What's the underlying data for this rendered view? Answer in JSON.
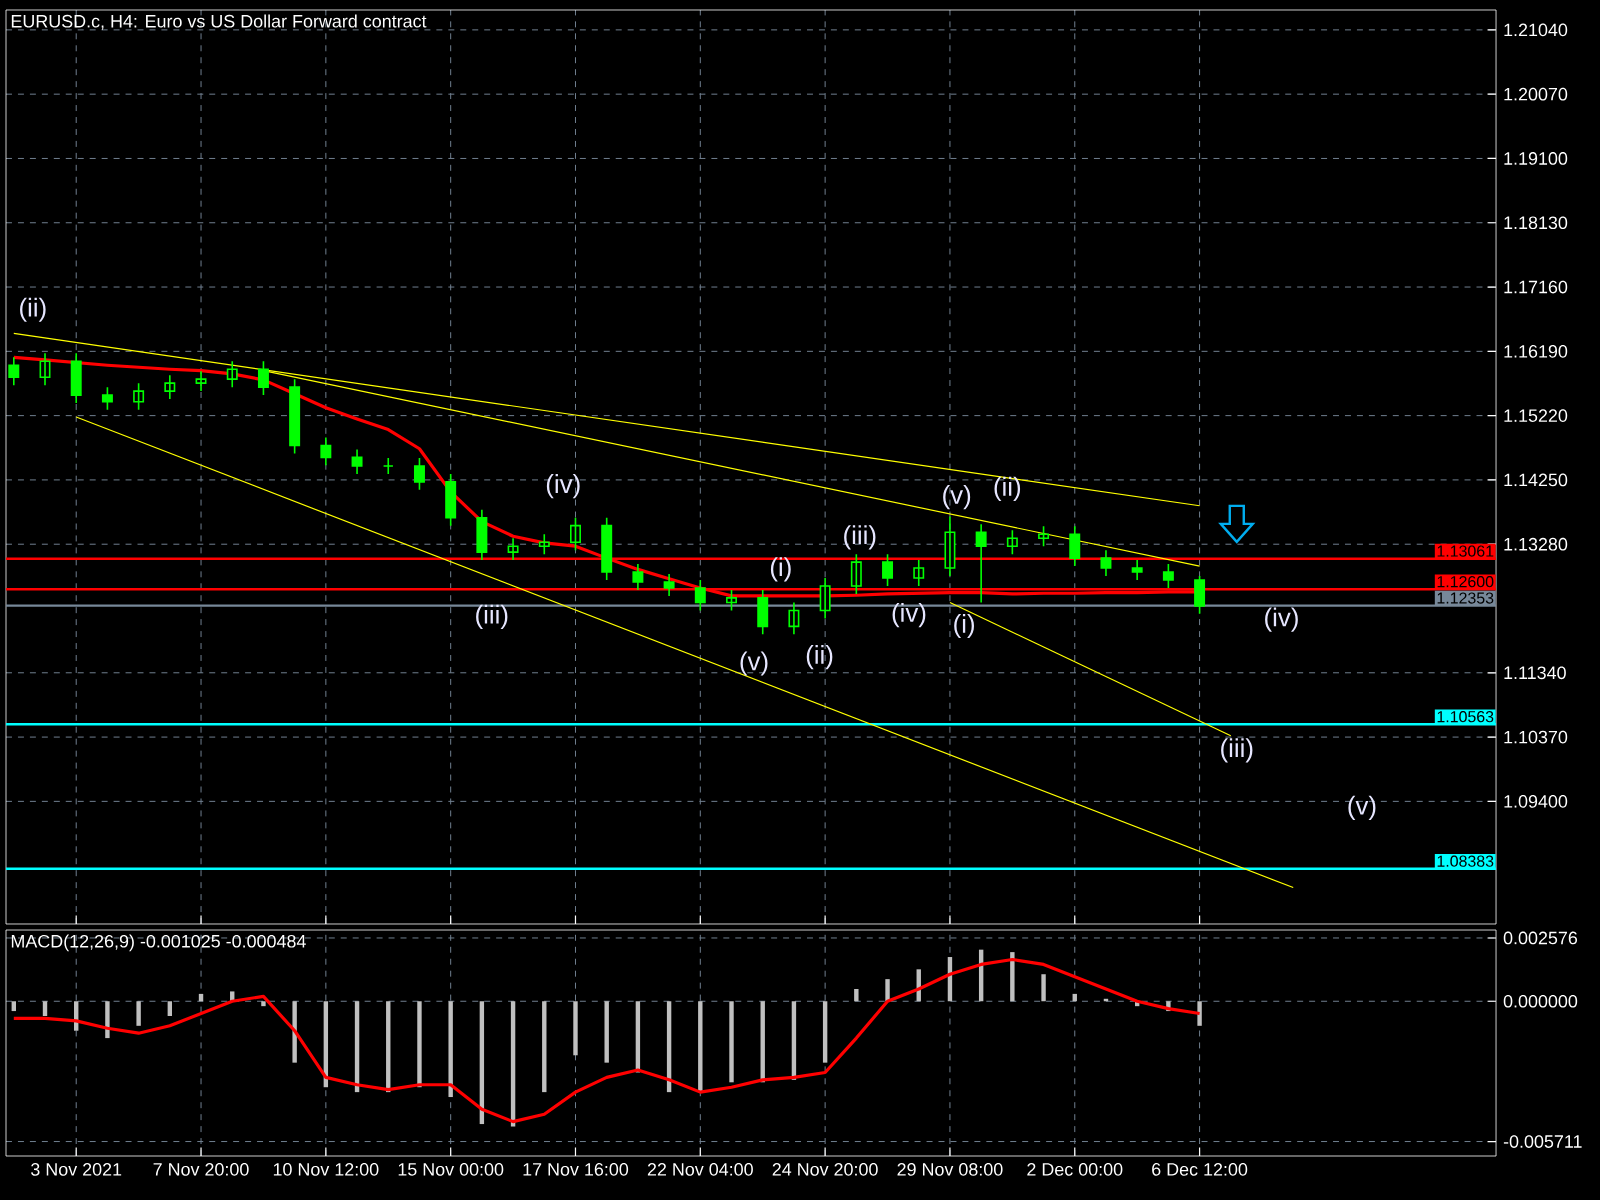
{
  "chart_data": [
    {
      "type": "candlestick",
      "title": "EURUSD.c, H4:  Euro vs US Dollar Forward contract",
      "color": "#00ff00",
      "categories": [
        null,
        null,
        null,
        null,
        null,
        null,
        null,
        null,
        null,
        null,
        null,
        null,
        null,
        null,
        null,
        null,
        null,
        null,
        null,
        null,
        null,
        null,
        null,
        null,
        null,
        null,
        null,
        null,
        null,
        null,
        null,
        null,
        null,
        null,
        null,
        null,
        null,
        null,
        null,
        null,
        null,
        null,
        null,
        null,
        null,
        null,
        null,
        null
      ],
      "ohlc": [
        [
          1.1598,
          1.161,
          1.1568,
          1.158
        ],
        [
          1.158,
          1.1616,
          1.1568,
          1.1604
        ],
        [
          1.1604,
          1.1616,
          1.1541,
          1.1553
        ],
        [
          1.1553,
          1.1565,
          1.1531,
          1.1543
        ],
        [
          1.1543,
          1.1571,
          1.1531,
          1.1559
        ],
        [
          1.1559,
          1.1583,
          1.1547,
          1.1571
        ],
        [
          1.1571,
          1.1589,
          1.1559,
          1.1577
        ],
        [
          1.1577,
          1.1604,
          1.1565,
          1.1592
        ],
        [
          1.1592,
          1.1604,
          1.1553,
          1.1565
        ],
        [
          1.1565,
          1.1577,
          1.1465,
          1.1477
        ],
        [
          1.1477,
          1.1489,
          1.1447,
          1.1459
        ],
        [
          1.1459,
          1.1471,
          1.1434,
          1.1446
        ],
        [
          1.1446,
          1.1458,
          1.1434,
          1.1446
        ],
        [
          1.1446,
          1.1458,
          1.141,
          1.1422
        ],
        [
          1.1422,
          1.1434,
          1.1356,
          1.1368
        ],
        [
          1.1368,
          1.138,
          1.1304,
          1.1316
        ],
        [
          1.1316,
          1.1337,
          1.1304,
          1.1325
        ],
        [
          1.1325,
          1.1343,
          1.1313,
          1.1331
        ],
        [
          1.1331,
          1.1368,
          1.1319,
          1.1356
        ],
        [
          1.1356,
          1.1368,
          1.1274,
          1.1286
        ],
        [
          1.1286,
          1.1298,
          1.1259,
          1.1271
        ],
        [
          1.1271,
          1.1283,
          1.125,
          1.1262
        ],
        [
          1.1262,
          1.1274,
          1.1228,
          1.124
        ],
        [
          1.124,
          1.1259,
          1.1228,
          1.1247
        ],
        [
          1.1247,
          1.1259,
          1.1192,
          1.1204
        ],
        [
          1.1204,
          1.124,
          1.1192,
          1.1228
        ],
        [
          1.1228,
          1.1277,
          1.1216,
          1.1265
        ],
        [
          1.1265,
          1.1313,
          1.1253,
          1.1301
        ],
        [
          1.1301,
          1.1313,
          1.1265,
          1.1277
        ],
        [
          1.1277,
          1.1304,
          1.1265,
          1.1292
        ],
        [
          1.1292,
          1.137,
          1.128,
          1.1346
        ],
        [
          1.1346,
          1.1358,
          1.124,
          1.1325
        ],
        [
          1.1325,
          1.1349,
          1.1313,
          1.1337
        ],
        [
          1.1337,
          1.1355,
          1.1325,
          1.1343
        ],
        [
          1.1343,
          1.1355,
          1.1295,
          1.1307
        ],
        [
          1.1307,
          1.1319,
          1.128,
          1.1292
        ],
        [
          1.1292,
          1.1304,
          1.1274,
          1.1286
        ],
        [
          1.1286,
          1.1298,
          1.1262,
          1.1274
        ],
        [
          1.1274,
          1.128,
          1.1223,
          1.1235
        ],
        null,
        null,
        null,
        null,
        null,
        null,
        null,
        null,
        null
      ],
      "series": [
        {
          "type": "line",
          "color": "#ff0000",
          "values": [
            1.161,
            1.1606,
            1.1602,
            1.1598,
            1.1595,
            1.1592,
            1.159,
            1.1585,
            1.1576,
            1.1555,
            1.1534,
            1.1517,
            1.1501,
            1.1472,
            1.1407,
            1.1362,
            1.134,
            1.133,
            1.1325,
            1.1307,
            1.129,
            1.1276,
            1.1262,
            1.125,
            1.125,
            1.125,
            1.125,
            1.1251,
            1.1253,
            1.1254,
            1.1255,
            1.1255,
            1.1253,
            1.1254,
            1.1254,
            1.1255,
            1.1255,
            1.1256,
            1.1256,
            null,
            null,
            null,
            null,
            null,
            null,
            null,
            null,
            null
          ]
        },
        {
          "type": "line",
          "color": "#ffff00",
          "values": [
            1.1646,
            null,
            null,
            null,
            null,
            null,
            null,
            null,
            null,
            null,
            null,
            null,
            null,
            null,
            null,
            null,
            null,
            null,
            null,
            null,
            null,
            null,
            null,
            null,
            null,
            null,
            null,
            null,
            null,
            null,
            null,
            null,
            null,
            null,
            null,
            null,
            null,
            null,
            1.1386,
            null,
            null,
            null,
            null,
            null,
            null,
            null,
            null,
            null
          ]
        },
        {
          "type": "line",
          "color": "#ffff00",
          "values": [
            null,
            null,
            null,
            null,
            null,
            null,
            null,
            null,
            1.159,
            null,
            null,
            null,
            null,
            null,
            null,
            null,
            null,
            null,
            null,
            null,
            null,
            null,
            null,
            null,
            null,
            null,
            null,
            null,
            null,
            null,
            null,
            null,
            null,
            null,
            null,
            null,
            null,
            null,
            1.1295,
            null,
            null,
            null,
            null,
            null,
            null,
            null,
            null,
            null
          ]
        },
        {
          "type": "line",
          "color": "#ffff00",
          "values": [
            null,
            null,
            1.152,
            null,
            null,
            null,
            null,
            null,
            null,
            null,
            null,
            null,
            null,
            null,
            null,
            null,
            null,
            null,
            null,
            null,
            null,
            null,
            null,
            null,
            null,
            null,
            null,
            null,
            null,
            null,
            null,
            null,
            null,
            null,
            null,
            null,
            null,
            null,
            null,
            null,
            null,
            1.081,
            null,
            null,
            null,
            null,
            null,
            null
          ]
        },
        {
          "type": "line",
          "color": "#ffff00",
          "values": [
            null,
            null,
            null,
            null,
            null,
            null,
            null,
            null,
            null,
            null,
            null,
            null,
            null,
            null,
            null,
            null,
            null,
            null,
            null,
            null,
            null,
            null,
            null,
            null,
            null,
            null,
            null,
            null,
            null,
            null,
            1.124,
            null,
            null,
            null,
            null,
            null,
            null,
            null,
            null,
            1.1039,
            null,
            null,
            null,
            null,
            null,
            null,
            null,
            null
          ]
        }
      ],
      "ref_lines": [
        {
          "axis": "y",
          "value": 1.13061,
          "label": "1.13061",
          "color": "#ff0000"
        },
        {
          "axis": "y",
          "value": 1.126,
          "label": "1.12600",
          "color": "#ff0000"
        },
        {
          "axis": "y",
          "value": 1.12353,
          "label": "1.12353",
          "color": "#778899"
        },
        {
          "axis": "y",
          "value": 1.10563,
          "label": "1.10563",
          "color": "#00ffff"
        },
        {
          "axis": "y",
          "value": 1.08383,
          "label": "1.08383",
          "color": "#00ffff"
        }
      ],
      "annotations": [
        "(ii)",
        "(iii)",
        "(iv)",
        "(v)",
        "(i)",
        "(ii)",
        "(iii)",
        "(iv)",
        "(v)",
        "(ii)",
        "(i)",
        "(iv)",
        "(iii)",
        "(v)"
      ],
      "ylim": [
        1.0755,
        1.2134
      ],
      "yticks": [
        {
          "value": 1.2104,
          "label": "1.21040"
        },
        {
          "value": 1.2007,
          "label": "1.20070"
        },
        {
          "value": 1.191,
          "label": "1.19100"
        },
        {
          "value": 1.1813,
          "label": "1.18130"
        },
        {
          "value": 1.1716,
          "label": "1.17160"
        },
        {
          "value": 1.1619,
          "label": "1.16190"
        },
        {
          "value": 1.1522,
          "label": "1.15220"
        },
        {
          "value": 1.1425,
          "label": "1.14250"
        },
        {
          "value": 1.1328,
          "label": "1.13280"
        },
        {
          "value": 1.1134,
          "label": "1.11340"
        },
        {
          "value": 1.1037,
          "label": "1.10370"
        },
        {
          "value": 1.094,
          "label": "1.09400"
        }
      ],
      "tick_labels": "y",
      "grid": true
    },
    {
      "type": "bar",
      "title": "MACD(12,26,9) -0.001025 -0.000484",
      "categories": [
        null,
        null,
        "3 Nov 2021",
        null,
        null,
        null,
        "7 Nov 20:00",
        null,
        null,
        null,
        "10 Nov 12:00",
        null,
        null,
        null,
        "15 Nov 00:00",
        null,
        null,
        null,
        "17 Nov 16:00",
        null,
        null,
        null,
        "22 Nov 04:00",
        null,
        null,
        null,
        "24 Nov 20:00",
        null,
        null,
        null,
        "29 Nov 08:00",
        null,
        null,
        null,
        "2 Dec 00:00",
        null,
        null,
        null,
        "6 Dec 12:00",
        null,
        null,
        null,
        null,
        null,
        null,
        null,
        null,
        null
      ],
      "series": [
        {
          "type": "bar",
          "color": "#c0c0c0",
          "values": [
            -0.0004,
            -0.0006,
            -0.0012,
            -0.0015,
            -0.001,
            -0.0006,
            0.0003,
            0.0004,
            -0.0002,
            -0.0025,
            -0.0035,
            -0.0037,
            -0.0037,
            -0.0035,
            -0.0039,
            -0.005,
            -0.0051,
            -0.0037,
            -0.0022,
            -0.0025,
            -0.0029,
            -0.0037,
            -0.0037,
            -0.0033,
            -0.0033,
            -0.0032,
            -0.0025,
            0.0005,
            0.0009,
            0.0013,
            0.0018,
            0.0021,
            0.002,
            0.0011,
            0.0003,
            0.0001,
            -0.0002,
            -0.0004,
            -0.001,
            null,
            null,
            null,
            null,
            null,
            null,
            null,
            null,
            null
          ]
        },
        {
          "type": "line",
          "color": "#ff0000",
          "values": [
            -0.0007,
            -0.0007,
            -0.0008,
            -0.0011,
            -0.0013,
            -0.001,
            -0.0005,
            0.0,
            0.0002,
            -0.0012,
            -0.0031,
            -0.0034,
            -0.0036,
            -0.0034,
            -0.0034,
            -0.0044,
            -0.0049,
            -0.0046,
            -0.0037,
            -0.0031,
            -0.0028,
            -0.0032,
            -0.0037,
            -0.0035,
            -0.0032,
            -0.0031,
            -0.0029,
            -0.0015,
            0.0,
            0.0005,
            0.0011,
            0.0015,
            0.0017,
            0.0015,
            0.001,
            0.0005,
            0.0,
            -0.0003,
            -0.0005,
            null,
            null,
            null,
            null,
            null,
            null,
            null,
            null,
            null
          ]
        }
      ],
      "ylim": [
        -0.0063,
        0.0029
      ],
      "yticks": [
        {
          "value": 0.002576,
          "label": "0.002576"
        },
        {
          "value": 0,
          "label": "0.000000"
        },
        {
          "value": -0.005711,
          "label": "-0.005711"
        }
      ],
      "grid": true
    }
  ]
}
